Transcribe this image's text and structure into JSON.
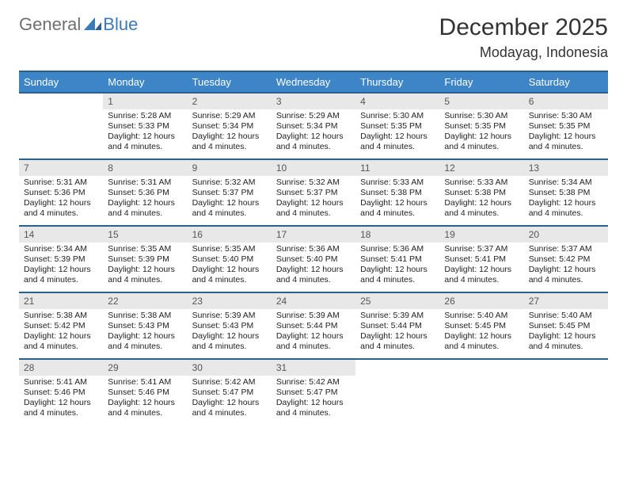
{
  "brand": {
    "general": "General",
    "blue": "Blue"
  },
  "header": {
    "month_title": "December 2025",
    "location": "Modayag, Indonesia"
  },
  "weekdays": [
    "Sunday",
    "Monday",
    "Tuesday",
    "Wednesday",
    "Thursday",
    "Friday",
    "Saturday"
  ],
  "colors": {
    "header_bg": "#3d85c6",
    "header_text": "#ffffff",
    "row_border": "#2b5f8e",
    "daynum_bg": "#e8e8e8",
    "logo_gray": "#6f6f6f",
    "logo_blue": "#3a7ab8"
  },
  "first_weekday_offset": 1,
  "days": [
    {
      "n": 1,
      "sunrise": "5:28 AM",
      "sunset": "5:33 PM",
      "daylight": "12 hours and 4 minutes."
    },
    {
      "n": 2,
      "sunrise": "5:29 AM",
      "sunset": "5:34 PM",
      "daylight": "12 hours and 4 minutes."
    },
    {
      "n": 3,
      "sunrise": "5:29 AM",
      "sunset": "5:34 PM",
      "daylight": "12 hours and 4 minutes."
    },
    {
      "n": 4,
      "sunrise": "5:30 AM",
      "sunset": "5:35 PM",
      "daylight": "12 hours and 4 minutes."
    },
    {
      "n": 5,
      "sunrise": "5:30 AM",
      "sunset": "5:35 PM",
      "daylight": "12 hours and 4 minutes."
    },
    {
      "n": 6,
      "sunrise": "5:30 AM",
      "sunset": "5:35 PM",
      "daylight": "12 hours and 4 minutes."
    },
    {
      "n": 7,
      "sunrise": "5:31 AM",
      "sunset": "5:36 PM",
      "daylight": "12 hours and 4 minutes."
    },
    {
      "n": 8,
      "sunrise": "5:31 AM",
      "sunset": "5:36 PM",
      "daylight": "12 hours and 4 minutes."
    },
    {
      "n": 9,
      "sunrise": "5:32 AM",
      "sunset": "5:37 PM",
      "daylight": "12 hours and 4 minutes."
    },
    {
      "n": 10,
      "sunrise": "5:32 AM",
      "sunset": "5:37 PM",
      "daylight": "12 hours and 4 minutes."
    },
    {
      "n": 11,
      "sunrise": "5:33 AM",
      "sunset": "5:38 PM",
      "daylight": "12 hours and 4 minutes."
    },
    {
      "n": 12,
      "sunrise": "5:33 AM",
      "sunset": "5:38 PM",
      "daylight": "12 hours and 4 minutes."
    },
    {
      "n": 13,
      "sunrise": "5:34 AM",
      "sunset": "5:38 PM",
      "daylight": "12 hours and 4 minutes."
    },
    {
      "n": 14,
      "sunrise": "5:34 AM",
      "sunset": "5:39 PM",
      "daylight": "12 hours and 4 minutes."
    },
    {
      "n": 15,
      "sunrise": "5:35 AM",
      "sunset": "5:39 PM",
      "daylight": "12 hours and 4 minutes."
    },
    {
      "n": 16,
      "sunrise": "5:35 AM",
      "sunset": "5:40 PM",
      "daylight": "12 hours and 4 minutes."
    },
    {
      "n": 17,
      "sunrise": "5:36 AM",
      "sunset": "5:40 PM",
      "daylight": "12 hours and 4 minutes."
    },
    {
      "n": 18,
      "sunrise": "5:36 AM",
      "sunset": "5:41 PM",
      "daylight": "12 hours and 4 minutes."
    },
    {
      "n": 19,
      "sunrise": "5:37 AM",
      "sunset": "5:41 PM",
      "daylight": "12 hours and 4 minutes."
    },
    {
      "n": 20,
      "sunrise": "5:37 AM",
      "sunset": "5:42 PM",
      "daylight": "12 hours and 4 minutes."
    },
    {
      "n": 21,
      "sunrise": "5:38 AM",
      "sunset": "5:42 PM",
      "daylight": "12 hours and 4 minutes."
    },
    {
      "n": 22,
      "sunrise": "5:38 AM",
      "sunset": "5:43 PM",
      "daylight": "12 hours and 4 minutes."
    },
    {
      "n": 23,
      "sunrise": "5:39 AM",
      "sunset": "5:43 PM",
      "daylight": "12 hours and 4 minutes."
    },
    {
      "n": 24,
      "sunrise": "5:39 AM",
      "sunset": "5:44 PM",
      "daylight": "12 hours and 4 minutes."
    },
    {
      "n": 25,
      "sunrise": "5:39 AM",
      "sunset": "5:44 PM",
      "daylight": "12 hours and 4 minutes."
    },
    {
      "n": 26,
      "sunrise": "5:40 AM",
      "sunset": "5:45 PM",
      "daylight": "12 hours and 4 minutes."
    },
    {
      "n": 27,
      "sunrise": "5:40 AM",
      "sunset": "5:45 PM",
      "daylight": "12 hours and 4 minutes."
    },
    {
      "n": 28,
      "sunrise": "5:41 AM",
      "sunset": "5:46 PM",
      "daylight": "12 hours and 4 minutes."
    },
    {
      "n": 29,
      "sunrise": "5:41 AM",
      "sunset": "5:46 PM",
      "daylight": "12 hours and 4 minutes."
    },
    {
      "n": 30,
      "sunrise": "5:42 AM",
      "sunset": "5:47 PM",
      "daylight": "12 hours and 4 minutes."
    },
    {
      "n": 31,
      "sunrise": "5:42 AM",
      "sunset": "5:47 PM",
      "daylight": "12 hours and 4 minutes."
    }
  ],
  "labels": {
    "sunrise": "Sunrise:",
    "sunset": "Sunset:",
    "daylight": "Daylight:"
  }
}
